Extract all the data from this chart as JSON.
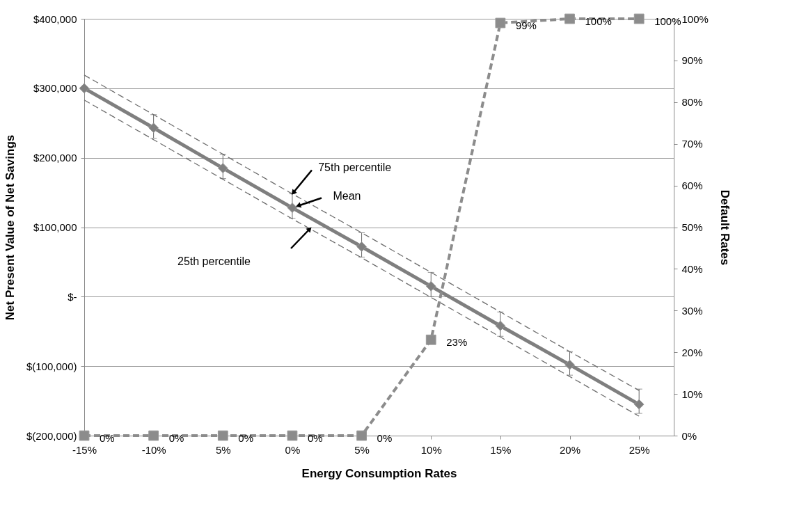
{
  "chart_data": {
    "type": "line",
    "xlabel": "Energy Consumption Rates",
    "ylabel": "Net Present Value of Net Savings",
    "y2label": "Default Rates",
    "categories": [
      "-15%",
      "-10%",
      "5%",
      "0%",
      "5%",
      "10%",
      "15%",
      "20%",
      "25%"
    ],
    "series": [
      {
        "color": "#7f7f7f",
        "marker": "diamond",
        "line_style": "solid",
        "values": [
          300000,
          243000,
          185000,
          128000,
          72000,
          15000,
          -42000,
          -98000,
          -155000
        ],
        "errors": [
          null,
          [
            228000,
            262000
          ],
          [
            170000,
            205000
          ],
          [
            113000,
            148000
          ],
          [
            57000,
            92000
          ],
          [
            0,
            35000
          ],
          [
            -57000,
            -22000
          ],
          [
            -113000,
            -79000
          ],
          [
            -168000,
            -133000
          ]
        ]
      },
      {
        "color": "#6e6e6e",
        "marker": "none",
        "line_style": "dashed",
        "values": [
          319000,
          262000,
          205000,
          148000,
          92000,
          35000,
          -22000,
          -79000,
          -135000
        ]
      },
      {
        "color": "#6e6e6e",
        "marker": "none",
        "line_style": "dashed",
        "values": [
          283000,
          226000,
          169000,
          112000,
          56000,
          -1000,
          -58000,
          -115000,
          -172000
        ]
      },
      {
        "axis": "y2",
        "color": "#8c8c8c",
        "marker": "square",
        "line_style": "dashed",
        "values": [
          0,
          0,
          0,
          0,
          0,
          23,
          99,
          100,
          100
        ],
        "value_labels": [
          "0%",
          "0%",
          "0%",
          "0%",
          "0%",
          "23%",
          "99%",
          "100%",
          "100%"
        ]
      }
    ],
    "ylim": [
      -200000,
      400000
    ],
    "yticks": [
      {
        "value": -200000,
        "label": "$(200,000)"
      },
      {
        "value": -100000,
        "label": "$(100,000)"
      },
      {
        "value": 0,
        "label": "$-"
      },
      {
        "value": 100000,
        "label": "$100,000"
      },
      {
        "value": 200000,
        "label": "$200,000"
      },
      {
        "value": 300000,
        "label": "$300,000"
      },
      {
        "value": 400000,
        "label": "$400,000"
      }
    ],
    "y2lim": [
      0,
      100
    ],
    "y2ticks": [
      {
        "value": 0,
        "label": "0%"
      },
      {
        "value": 10,
        "label": "10%"
      },
      {
        "value": 20,
        "label": "20%"
      },
      {
        "value": 30,
        "label": "30%"
      },
      {
        "value": 40,
        "label": "40%"
      },
      {
        "value": 50,
        "label": "50%"
      },
      {
        "value": 60,
        "label": "60%"
      },
      {
        "value": 70,
        "label": "70%"
      },
      {
        "value": 80,
        "label": "80%"
      },
      {
        "value": 90,
        "label": "90%"
      },
      {
        "value": 100,
        "label": "100%"
      }
    ],
    "grid": "y",
    "annotations": [
      {
        "text": "75th percentile",
        "x": "0%",
        "y": 148000
      },
      {
        "text": "Mean",
        "x": "0%",
        "y": 128000
      },
      "25th percentile"
    ]
  }
}
